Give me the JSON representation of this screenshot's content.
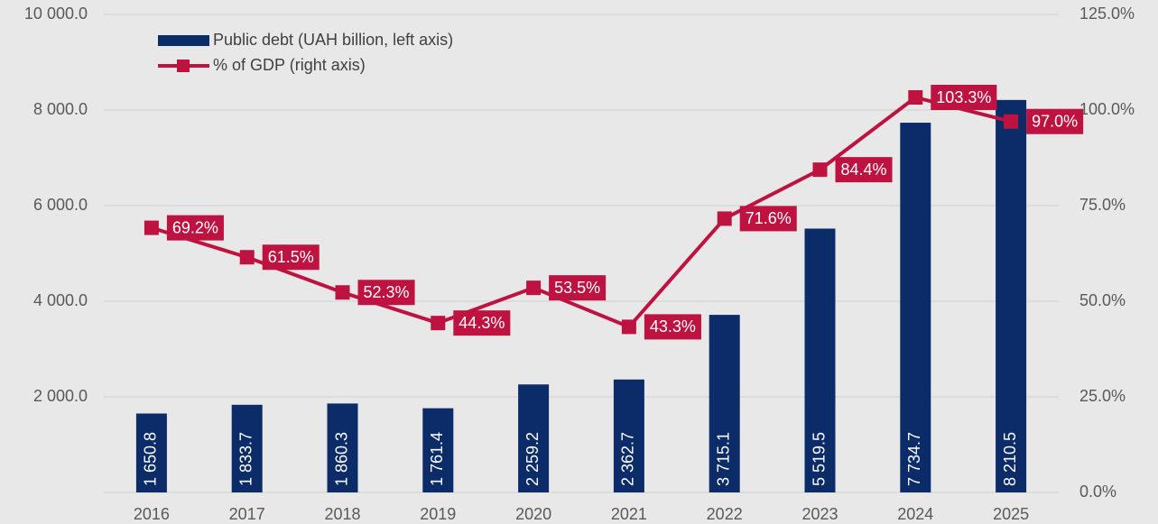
{
  "chart_data": {
    "type": "bar",
    "categories": [
      "2016",
      "2017",
      "2018",
      "2019",
      "2020",
      "2021",
      "2022",
      "2023",
      "2024",
      "2025"
    ],
    "series": [
      {
        "name": "Public debt (UAH billion, left axis)",
        "type": "bar",
        "color": "#0b2c69",
        "values": [
          1650.8,
          1833.7,
          1860.3,
          1761.4,
          2259.2,
          2362.7,
          3715.1,
          5519.5,
          7734.7,
          8210.5
        ],
        "value_labels": [
          "1 650.8",
          "1 833.7",
          "1 860.3",
          "1 761.4",
          "2 259.2",
          "2 362.7",
          "3 715.1",
          "5 519.5",
          "7 734.7",
          "8 210.5"
        ]
      },
      {
        "name": "% of GDP (right axis)",
        "type": "line",
        "axis": "y2",
        "color": "#be1340",
        "values": [
          69.2,
          61.5,
          52.3,
          44.3,
          53.5,
          43.3,
          71.6,
          84.4,
          103.3,
          97.0
        ],
        "value_labels": [
          "69.2%",
          "61.5%",
          "52.3%",
          "44.3%",
          "53.5%",
          "43.3%",
          "71.6%",
          "84.4%",
          "103.3%",
          "97.0%"
        ]
      }
    ],
    "ylim": [
      0,
      10000
    ],
    "yticks": [
      {
        "value": 2000,
        "label": "2 000.0"
      },
      {
        "value": 4000,
        "label": "4 000.0"
      },
      {
        "value": 6000,
        "label": "6 000.0"
      },
      {
        "value": 8000,
        "label": "8 000.0"
      },
      {
        "value": 10000,
        "label": "10 000.0"
      }
    ],
    "y2lim": [
      0,
      125
    ],
    "y2ticks": [
      {
        "value": 0,
        "label": "0.0%"
      },
      {
        "value": 25,
        "label": "25.0%"
      },
      {
        "value": 50,
        "label": "50.0%"
      },
      {
        "value": 75,
        "label": "75.0%"
      },
      {
        "value": 100,
        "label": "100.0%"
      },
      {
        "value": 125,
        "label": "125.0%"
      }
    ],
    "grid": true
  }
}
